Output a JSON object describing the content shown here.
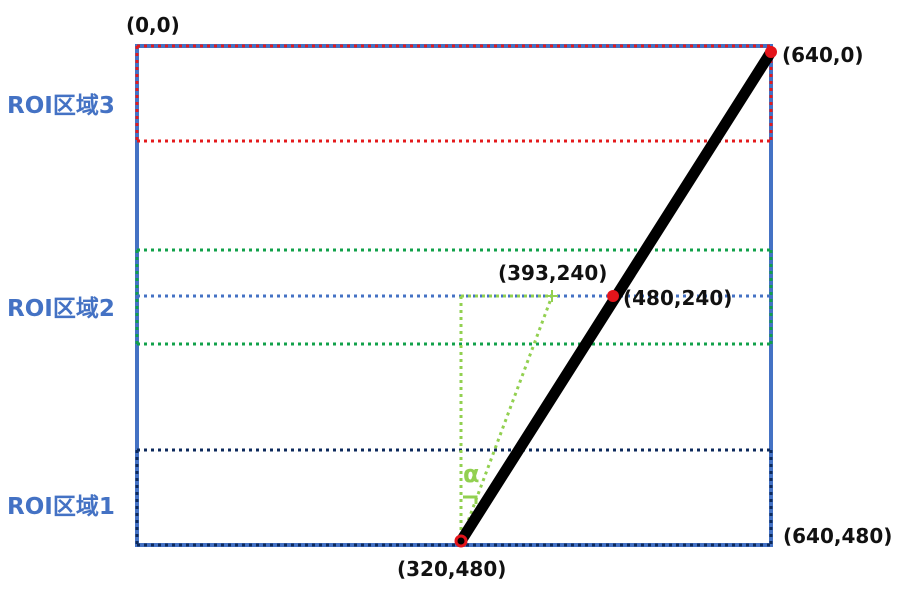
{
  "colors": {
    "frame": "#4472C4",
    "roi3": "#E41A1C",
    "roi2": "#11A14A",
    "roi1": "#0D2A5C",
    "midline": "#4472C4",
    "guide": "#92D050",
    "path": "#000000",
    "marker": "#E3141B",
    "text": "#111111",
    "roi_text": "#4472C4"
  },
  "regions": [
    {
      "id": "roi3",
      "label": "ROI区域3"
    },
    {
      "id": "roi2",
      "label": "ROI区域2"
    },
    {
      "id": "roi1",
      "label": "ROI区域1"
    }
  ],
  "points": {
    "origin": "(0,0)",
    "top_right": "(640,0)",
    "bottom_right": "(640,480)",
    "bottom_center": "(320,480)",
    "mid_line": "(480,240)",
    "mid_guide": "(393,240)"
  },
  "angle_label": "α"
}
